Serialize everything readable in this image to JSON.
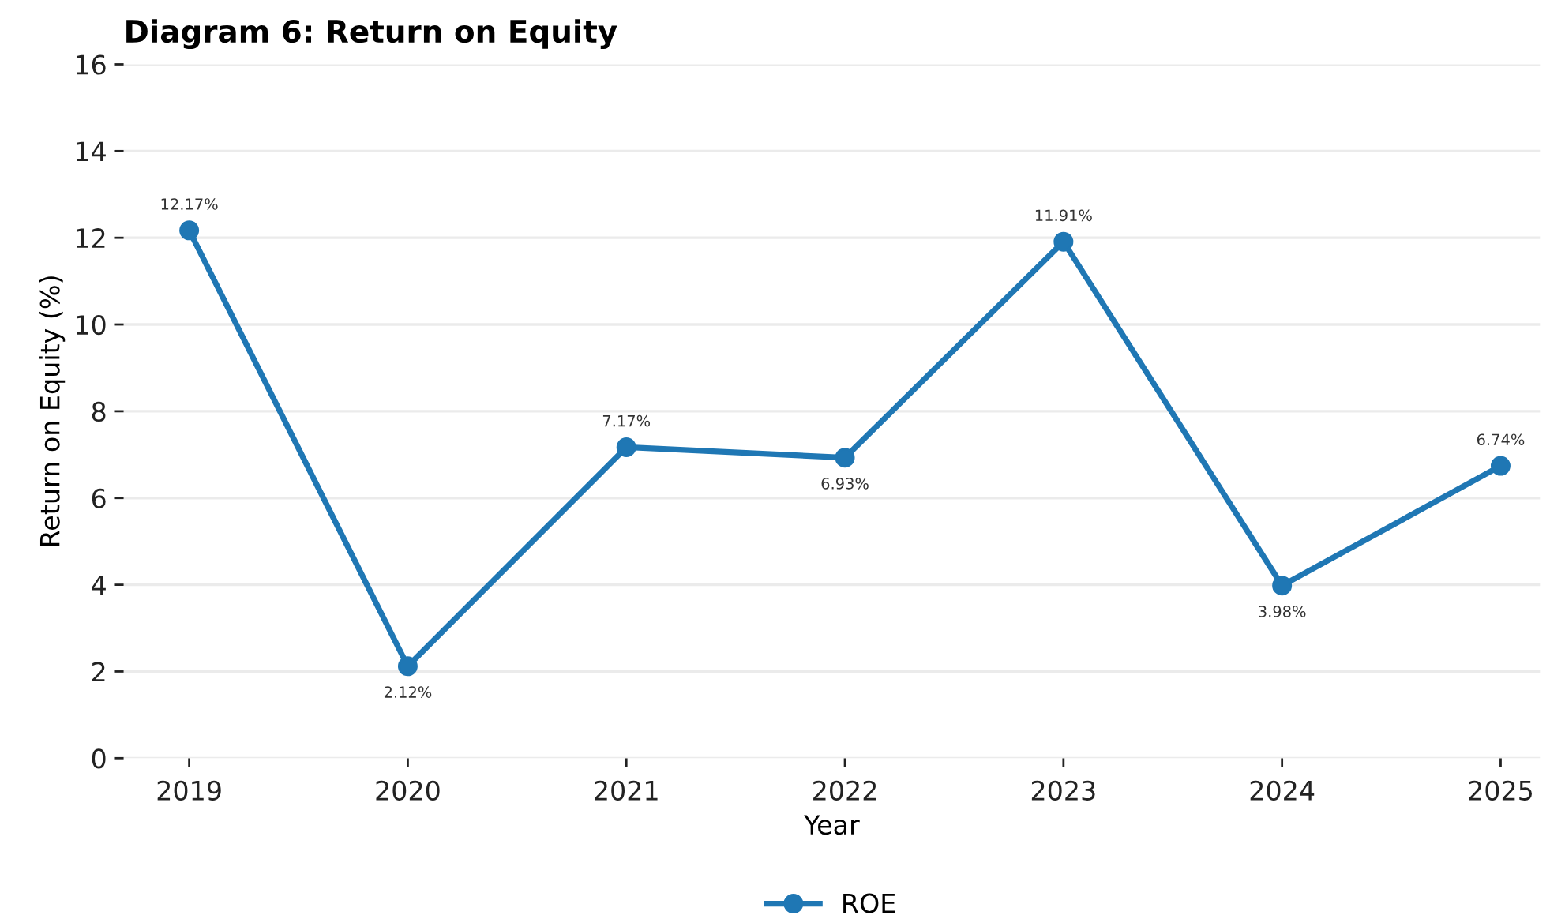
{
  "chart_data": {
    "type": "line",
    "title": "Diagram 6: Return on Equity",
    "xlabel": "Year",
    "ylabel": "Return on Equity (%)",
    "categories": [
      "2019",
      "2020",
      "2021",
      "2022",
      "2023",
      "2024",
      "2025"
    ],
    "series": [
      {
        "name": "ROE",
        "color": "#1f77b4",
        "values": [
          12.17,
          2.12,
          7.17,
          6.93,
          11.91,
          3.98,
          6.74
        ],
        "value_labels": [
          "12.17%",
          "2.12%",
          "7.17%",
          "6.93%",
          "11.91%",
          "3.98%",
          "6.74%"
        ]
      }
    ],
    "ylim": [
      0,
      16
    ],
    "yticks": [
      0,
      2,
      4,
      6,
      8,
      10,
      12,
      14,
      16
    ],
    "grid": "y",
    "legend": "bottom",
    "marker": "circle",
    "line_style": "solid"
  }
}
